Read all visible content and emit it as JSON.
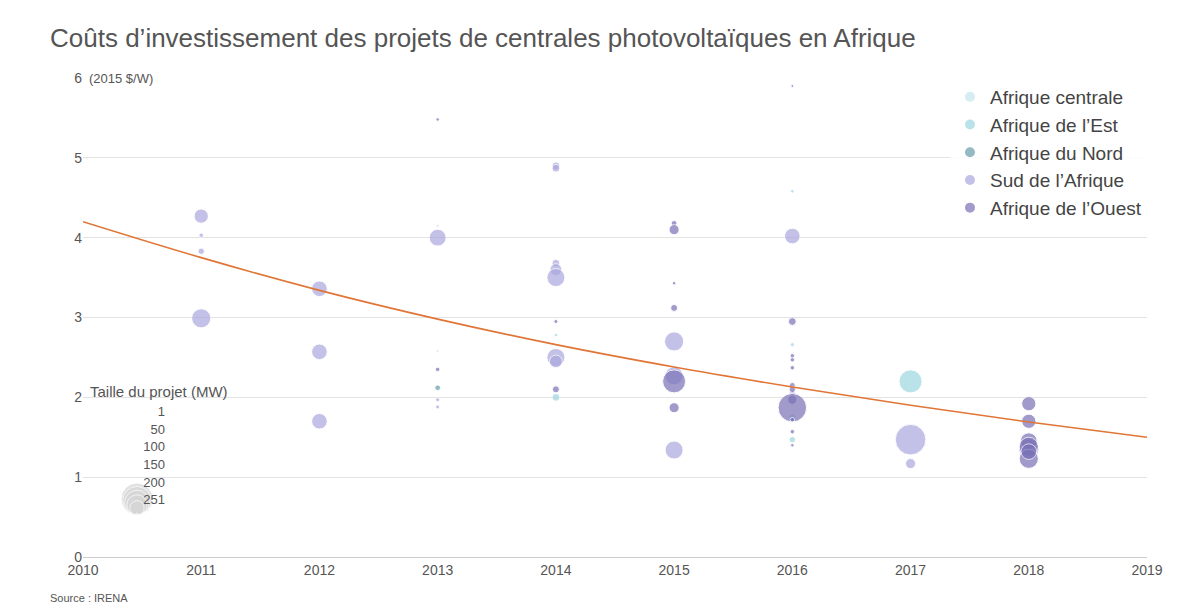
{
  "chart_data": {
    "type": "scatter",
    "title": "Coûts d’investissement des projets de centrales photovoltaïques en Afrique",
    "y_label": "(2015 $/W)",
    "source": "Source : IRENA",
    "xlim": [
      2010,
      2019
    ],
    "xticks": [
      2010,
      2011,
      2012,
      2013,
      2014,
      2015,
      2016,
      2017,
      2018,
      2019
    ],
    "ylim": [
      0,
      6
    ],
    "yticks": [
      0,
      1,
      2,
      3,
      4,
      5,
      6
    ],
    "grid": true,
    "legend": "top right",
    "marker": "circle",
    "series": [
      {
        "name": "Afrique centrale",
        "color": "#c6e7ee",
        "x": [
          2016
        ],
        "values": [
          1.93
        ],
        "size": [
          4
        ]
      },
      {
        "name": "Afrique de l’Est",
        "color": "#9ed6e1",
        "x": [
          2014,
          2014,
          2016,
          2016,
          2016,
          2016,
          2017
        ],
        "values": [
          2.78,
          2.0,
          4.58,
          2.66,
          1.75,
          1.47,
          2.2
        ],
        "size": [
          3,
          15,
          3,
          4,
          12,
          10,
          130
        ]
      },
      {
        "name": "Afrique du Nord",
        "color": "#6a9eab",
        "x": [
          2013
        ],
        "values": [
          2.12
        ],
        "size": [
          8
        ]
      },
      {
        "name": "Sud de l’Afrique",
        "color": "#aaa7de",
        "x": [
          2011,
          2011,
          2011,
          2011,
          2012,
          2012,
          2012,
          2013,
          2013,
          2013,
          2013,
          2013,
          2014,
          2014,
          2014,
          2014,
          2014,
          2014,
          2014,
          2015,
          2015,
          2015,
          2016,
          2016,
          2017,
          2017,
          2018
        ],
        "values": [
          4.27,
          4.03,
          3.83,
          2.99,
          3.36,
          2.57,
          1.7,
          4.15,
          4.0,
          2.58,
          1.97,
          1.88,
          4.9,
          4.87,
          3.68,
          3.6,
          3.5,
          2.5,
          2.45,
          2.7,
          2.27,
          1.34,
          4.02,
          2.05,
          1.47,
          1.17,
          1.35
        ],
        "size": [
          50,
          5,
          10,
          90,
          60,
          60,
          60,
          1,
          70,
          1,
          4,
          4,
          15,
          15,
          15,
          35,
          80,
          80,
          40,
          90,
          80,
          80,
          60,
          8,
          230,
          25,
          100
        ]
      },
      {
        "name": "Afrique de l’Ouest",
        "color": "#7a72b7",
        "x": [
          2013,
          2013,
          2014,
          2014,
          2015,
          2015,
          2015,
          2015,
          2015,
          2015,
          2016,
          2016,
          2016,
          2016,
          2016,
          2016,
          2016,
          2016,
          2016,
          2016,
          2016,
          2016,
          2018,
          2018,
          2018,
          2018,
          2018,
          2018
        ],
        "values": [
          5.48,
          2.35,
          2.95,
          2.1,
          4.18,
          4.1,
          3.43,
          3.12,
          1.87,
          2.2,
          5.9,
          2.95,
          2.52,
          2.47,
          2.37,
          2.15,
          2.1,
          1.97,
          1.87,
          1.72,
          1.57,
          1.4,
          1.92,
          1.7,
          1.45,
          1.38,
          1.23,
          1.32
        ],
        "size": [
          3,
          5,
          4,
          12,
          8,
          25,
          3,
          12,
          25,
          130,
          2,
          15,
          5,
          5,
          5,
          8,
          10,
          20,
          200,
          5,
          5,
          3,
          50,
          50,
          70,
          90,
          90,
          60
        ]
      }
    ],
    "trend": {
      "type": "line",
      "color": "#e07536",
      "x": [
        2010,
        2011,
        2012,
        2013,
        2014,
        2015,
        2016,
        2017,
        2018,
        2019
      ],
      "values": [
        4.2,
        3.75,
        3.34,
        2.98,
        2.66,
        2.38,
        2.13,
        1.9,
        1.69,
        1.5
      ]
    },
    "size_legend": {
      "title": "Taille du projet (MW)",
      "values": [
        1,
        50,
        100,
        150,
        200,
        251
      ],
      "color": "#d6d6d6"
    }
  }
}
